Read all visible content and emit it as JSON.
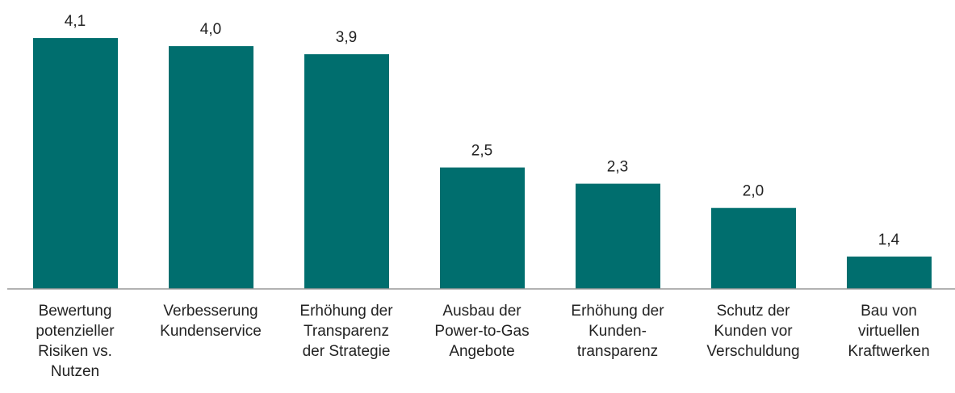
{
  "chart_data": {
    "type": "bar",
    "categories": [
      [
        "Bewertung",
        "potenzieller",
        "Risiken vs.",
        "Nutzen"
      ],
      [
        "Verbesserung",
        "Kundenservice"
      ],
      [
        "Erhöhung der",
        "Transparenz",
        "der Strategie"
      ],
      [
        "Ausbau der",
        "Power-to-Gas",
        "Angebote"
      ],
      [
        "Erhöhung der",
        "Kunden-",
        "transparenz"
      ],
      [
        "Schutz der",
        "Kunden vor",
        "Verschuldung"
      ],
      [
        "Bau von",
        "virtuellen",
        "Kraftwerken"
      ]
    ],
    "values": [
      4.1,
      4.0,
      3.9,
      2.5,
      2.3,
      2.0,
      1.4
    ],
    "value_labels": [
      "4,1",
      "4,0",
      "3,9",
      "2,5",
      "2,3",
      "2,0",
      "1,4"
    ],
    "color": "#006e6e",
    "ylim": [
      1,
      4.4
    ]
  }
}
